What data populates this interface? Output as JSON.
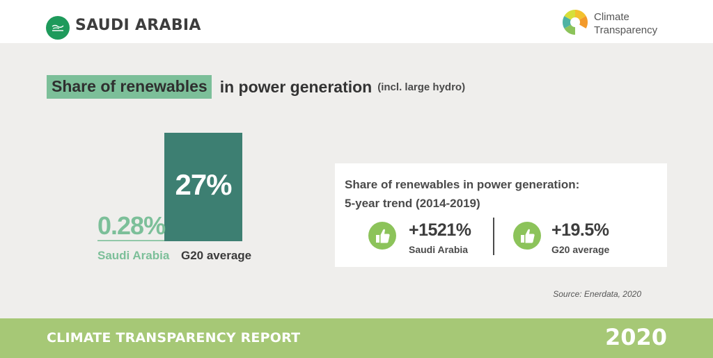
{
  "header": {
    "country": "SAUDI ARABIA",
    "brand_line1": "Climate",
    "brand_line2": "Transparency"
  },
  "title": {
    "highlight": "Share of renewables",
    "rest": "in power generation",
    "note": "(incl. large hydro)"
  },
  "chart_data": {
    "type": "bar",
    "title": "Share of renewables in power generation (incl. large hydro)",
    "categories": [
      "Saudi Arabia",
      "G20 average"
    ],
    "values": [
      0.28,
      27
    ],
    "value_labels": [
      "0.28%",
      "27%"
    ],
    "unit": "%",
    "ylim": [
      0,
      27
    ],
    "grid": false,
    "legend": "none",
    "colors": [
      "#7cbf99",
      "#3d7f72"
    ]
  },
  "trend": {
    "title_line1": "Share of renewables in power generation:",
    "title_line2": "5-year trend (2014-2019)",
    "items": [
      {
        "value": "+1521%",
        "label": "Saudi Arabia",
        "icon": "thumbs-up-icon"
      },
      {
        "value": "+19.5%",
        "label": "G20 average",
        "icon": "thumbs-up-icon"
      }
    ]
  },
  "source": "Source: Enerdata, 2020",
  "footer": {
    "report": "CLIMATE TRANSPARENCY REPORT",
    "year": "2020"
  },
  "colors": {
    "background": "#efeeec",
    "accent_green": "#7cbf99",
    "dark_teal": "#3d7f72",
    "thumb_green": "#8cc35a",
    "footer_green": "#a6c876",
    "flag_green": "#1e9a5b"
  }
}
